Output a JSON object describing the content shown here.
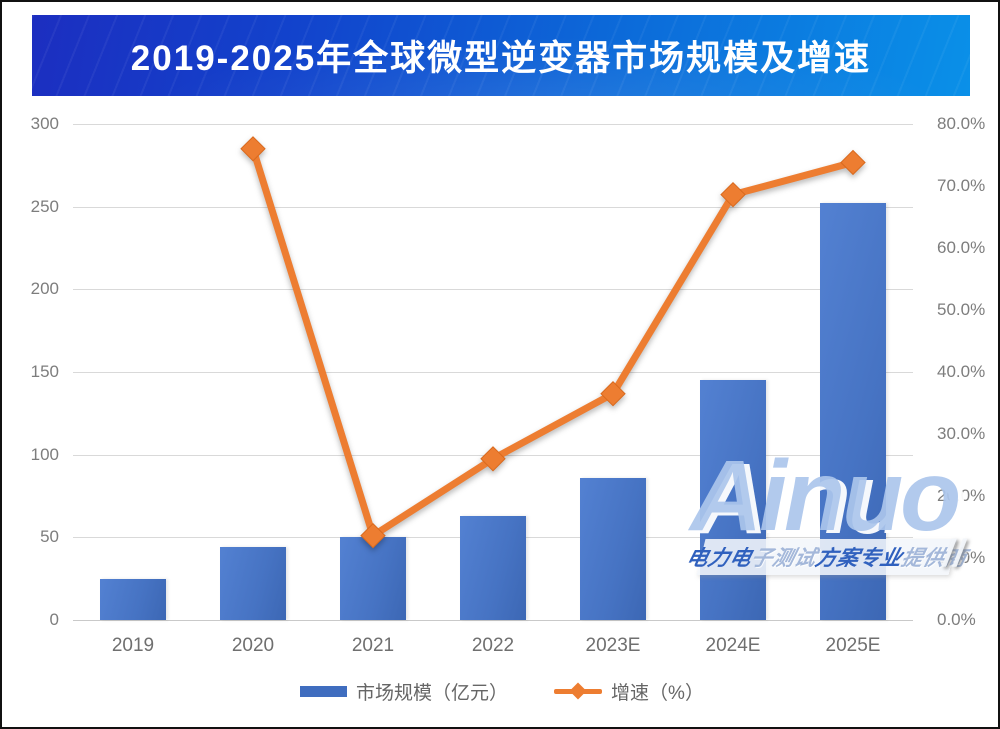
{
  "title": "2019-2025年全球微型逆变器市场规模及增速",
  "chart_data": {
    "type": "bar",
    "subtype": "combo-bar-line-dual-axis",
    "categories": [
      "2019",
      "2020",
      "2021",
      "2022",
      "2023E",
      "2024E",
      "2025E"
    ],
    "series": [
      {
        "name": "市场规模（亿元）",
        "type": "bar",
        "axis": "left",
        "values": [
          25,
          44,
          50,
          63,
          86,
          145,
          252
        ]
      },
      {
        "name": "增速（%）",
        "type": "line",
        "axis": "right",
        "values": [
          null,
          76.0,
          13.6,
          26.0,
          36.5,
          68.6,
          73.8
        ]
      }
    ],
    "left_axis": {
      "min": 0,
      "max": 300,
      "step": 50,
      "tick_labels": [
        "0",
        "50",
        "100",
        "150",
        "200",
        "250",
        "300"
      ]
    },
    "right_axis": {
      "min": 0,
      "max": 80,
      "step": 10,
      "tick_labels": [
        "0.0%",
        "10.0%",
        "20.0%",
        "30.0%",
        "40.0%",
        "50.0%",
        "60.0%",
        "70.0%",
        "80.0%"
      ]
    },
    "grid": true,
    "legend_position": "bottom",
    "colors": {
      "bar": "#4A76C6",
      "line": "#ED7D31",
      "gridline": "#D9D9D9",
      "axis_text": "#7D7D7D"
    }
  },
  "watermark": {
    "brand": "Ainuo",
    "tagline_segments": [
      {
        "text": "电力电",
        "style": "solid"
      },
      {
        "text": "子测试",
        "style": "light"
      },
      {
        "text": "方案专业",
        "style": "solid"
      },
      {
        "text": "提供商",
        "style": "light"
      }
    ],
    "slashes": "//"
  }
}
